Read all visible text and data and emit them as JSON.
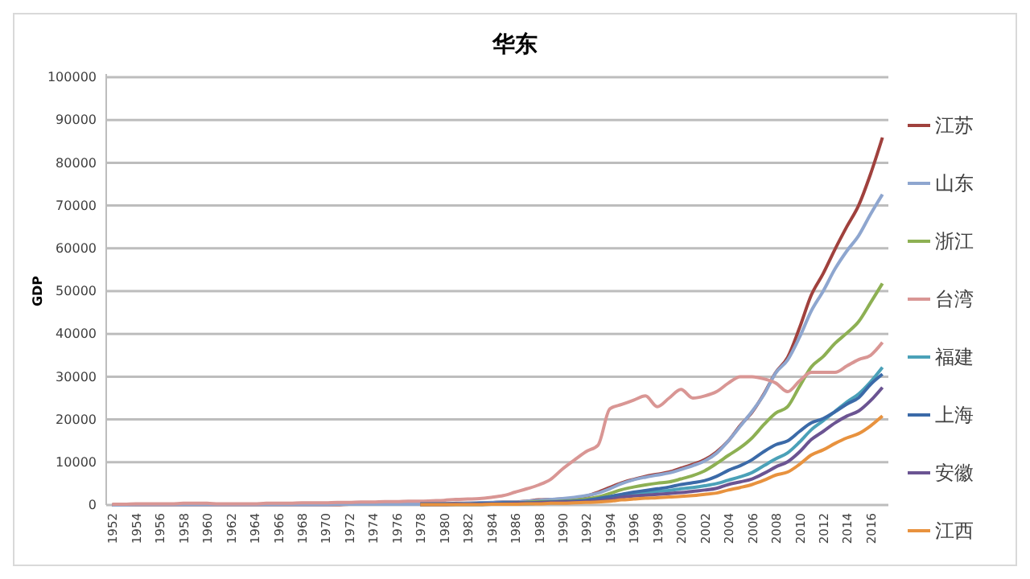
{
  "chart_data": {
    "type": "line",
    "title": "华东",
    "ylabel": "GDP",
    "categories": [
      "1952",
      null,
      "1954",
      null,
      "1956",
      null,
      "1958",
      null,
      "1960",
      null,
      "1962",
      null,
      "1964",
      null,
      "1966",
      null,
      "1968",
      null,
      "1970",
      null,
      "1972",
      null,
      "1974",
      null,
      "1976",
      null,
      "1978",
      null,
      "1980",
      null,
      "1982",
      null,
      "1984",
      null,
      "1986",
      null,
      "1988",
      null,
      "1990",
      null,
      "1992",
      null,
      "1994",
      null,
      "1996",
      null,
      "1998",
      null,
      "2000",
      null,
      "2002",
      null,
      "2004",
      null,
      "2006",
      null,
      "2008",
      null,
      "2010",
      null,
      "2012",
      null,
      "2014",
      null,
      "2016",
      null
    ],
    "ylim": [
      0,
      100000
    ],
    "yticks": [
      0,
      10000,
      20000,
      30000,
      40000,
      50000,
      60000,
      70000,
      80000,
      90000,
      100000
    ],
    "grid": "y",
    "legend": "right",
    "marker": "none",
    "line_style": "solid",
    "series": [
      {
        "name": "江苏",
        "color": "#a0413d",
        "values": [
          0,
          100,
          100,
          100,
          100,
          100,
          100,
          100,
          100,
          100,
          100,
          100,
          100,
          100,
          100,
          100,
          100,
          100,
          100,
          100,
          200,
          200,
          200,
          200,
          200,
          200,
          200,
          300,
          300,
          400,
          400,
          400,
          500,
          700,
          700,
          900,
          1200,
          1300,
          1400,
          1600,
          2100,
          3000,
          4100,
          5200,
          6000,
          6700,
          7200,
          7700,
          8600,
          9500,
          10600,
          12400,
          15000,
          18600,
          21700,
          26000,
          31000,
          34500,
          41400,
          49100,
          54100,
          59800,
          65100,
          70100,
          77400,
          85900
        ]
      },
      {
        "name": "山东",
        "color": "#8ea6cf",
        "values": [
          0,
          0,
          100,
          100,
          100,
          100,
          100,
          100,
          100,
          100,
          100,
          100,
          100,
          100,
          100,
          100,
          100,
          100,
          100,
          200,
          200,
          200,
          200,
          200,
          200,
          200,
          200,
          300,
          300,
          300,
          400,
          500,
          600,
          700,
          700,
          900,
          1100,
          1300,
          1500,
          1800,
          2200,
          2800,
          3800,
          5000,
          5900,
          6500,
          7000,
          7500,
          8300,
          9200,
          10300,
          12100,
          15000,
          18400,
          21900,
          25800,
          30900,
          33900,
          39200,
          45400,
          50000,
          55200,
          59400,
          63000,
          68000,
          72600
        ]
      },
      {
        "name": "浙江",
        "color": "#8db053",
        "values": [
          null,
          null,
          null,
          null,
          null,
          null,
          null,
          null,
          null,
          null,
          null,
          null,
          null,
          null,
          null,
          null,
          null,
          null,
          null,
          null,
          null,
          null,
          null,
          null,
          null,
          null,
          100,
          200,
          200,
          200,
          200,
          300,
          300,
          400,
          500,
          600,
          800,
          800,
          900,
          1100,
          1400,
          1900,
          2700,
          3600,
          4200,
          4700,
          5100,
          5400,
          6100,
          6900,
          8000,
          9700,
          11600,
          13400,
          15700,
          18800,
          21500,
          23000,
          27700,
          32300,
          34700,
          37800,
          40200,
          42900,
          47300,
          51800
        ]
      },
      {
        "name": "台湾",
        "color": "#d99694",
        "values": [
          200,
          200,
          300,
          300,
          300,
          300,
          400,
          400,
          400,
          300,
          300,
          300,
          300,
          400,
          400,
          400,
          500,
          500,
          500,
          600,
          600,
          700,
          700,
          800,
          800,
          900,
          900,
          1000,
          1100,
          1300,
          1400,
          1500,
          1800,
          2200,
          3000,
          3800,
          4700,
          6000,
          8400,
          10500,
          12500,
          14000,
          22500,
          23500,
          24500,
          25500,
          23000,
          25000,
          27000,
          25000,
          25500,
          26500,
          28500,
          30000,
          30000,
          29500,
          28500,
          26500,
          29000,
          31000,
          31000,
          31000,
          32500,
          34000,
          35000,
          38000
        ]
      },
      {
        "name": "福建",
        "color": "#4ba1b8",
        "values": [
          null,
          null,
          null,
          null,
          null,
          null,
          null,
          null,
          null,
          null,
          null,
          null,
          null,
          null,
          null,
          null,
          null,
          null,
          null,
          null,
          null,
          null,
          null,
          null,
          null,
          null,
          100,
          100,
          100,
          100,
          100,
          100,
          200,
          200,
          200,
          300,
          400,
          500,
          500,
          600,
          800,
          1100,
          1600,
          2100,
          2500,
          2900,
          3200,
          3400,
          3800,
          4100,
          4500,
          5000,
          5800,
          6600,
          7600,
          9200,
          10800,
          12200,
          14700,
          17600,
          19700,
          21900,
          24100,
          26000,
          28800,
          32200
        ]
      },
      {
        "name": "上海",
        "color": "#3b6aa8",
        "values": [
          null,
          null,
          null,
          null,
          null,
          null,
          null,
          null,
          null,
          null,
          null,
          null,
          null,
          null,
          null,
          null,
          null,
          null,
          null,
          null,
          null,
          null,
          null,
          null,
          null,
          null,
          300,
          300,
          300,
          300,
          300,
          400,
          400,
          500,
          500,
          500,
          600,
          700,
          800,
          900,
          1100,
          1500,
          2000,
          2500,
          3000,
          3400,
          3800,
          4200,
          4800,
          5200,
          5700,
          6700,
          8100,
          9200,
          10600,
          12500,
          14100,
          15000,
          17200,
          19200,
          20200,
          21800,
          23600,
          25100,
          28200,
          30600
        ]
      },
      {
        "name": "安徽",
        "color": "#6b5492",
        "values": [
          null,
          null,
          null,
          null,
          null,
          null,
          null,
          null,
          null,
          null,
          null,
          null,
          null,
          null,
          null,
          null,
          null,
          null,
          null,
          null,
          null,
          null,
          null,
          null,
          null,
          null,
          100,
          100,
          100,
          200,
          200,
          200,
          300,
          300,
          400,
          400,
          500,
          600,
          700,
          700,
          800,
          1000,
          1300,
          1800,
          2100,
          2300,
          2500,
          2700,
          2900,
          3200,
          3500,
          3900,
          4800,
          5400,
          6100,
          7400,
          8900,
          10100,
          12400,
          15300,
          17200,
          19200,
          20800,
          22000,
          24400,
          27500
        ]
      },
      {
        "name": "江西",
        "color": "#e8923e",
        "values": [
          null,
          null,
          null,
          null,
          null,
          null,
          null,
          null,
          null,
          null,
          null,
          null,
          null,
          null,
          null,
          null,
          null,
          null,
          null,
          null,
          null,
          null,
          null,
          null,
          null,
          null,
          100,
          100,
          100,
          100,
          100,
          100,
          200,
          200,
          200,
          300,
          300,
          400,
          400,
          500,
          600,
          700,
          900,
          1200,
          1400,
          1600,
          1700,
          1900,
          2000,
          2200,
          2500,
          2800,
          3500,
          4100,
          4800,
          5800,
          7000,
          7700,
          9500,
          11700,
          12900,
          14400,
          15700,
          16700,
          18500,
          20800
        ]
      }
    ]
  }
}
